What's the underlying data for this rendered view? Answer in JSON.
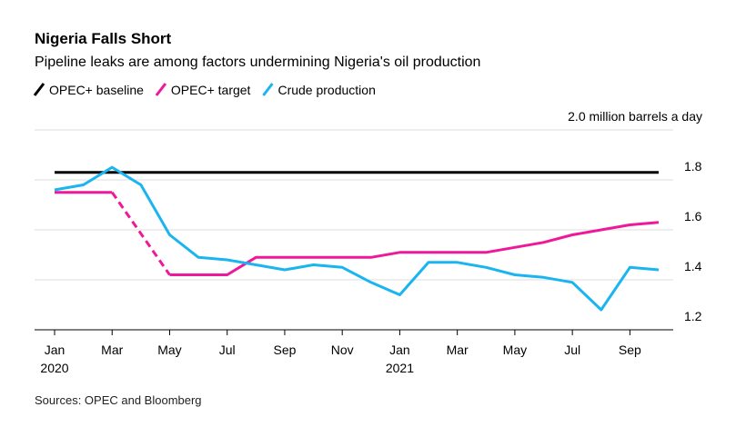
{
  "chart_data": {
    "type": "line",
    "title": "Nigeria Falls Short",
    "subtitle": "Pipeline leaks are among factors undermining Nigeria's oil production",
    "source": "Sources: OPEC and Bloomberg",
    "categories": [
      "Jan",
      null,
      "Mar",
      null,
      "May",
      null,
      "Jul",
      null,
      "Sep",
      null,
      "Nov",
      null,
      "Jan",
      null,
      "Mar",
      null,
      "May",
      null,
      "Jul",
      null,
      "Sep",
      null
    ],
    "years": [
      "2020",
      "2021"
    ],
    "series": [
      {
        "name": "OPEC+ baseline",
        "color": "#000000",
        "values": [
          1.83,
          1.83,
          1.83,
          1.83,
          1.83,
          1.83,
          1.83,
          1.83,
          1.83,
          1.83,
          1.83,
          1.83,
          1.83,
          1.83,
          1.83,
          1.83,
          1.83,
          1.83,
          1.83,
          1.83,
          1.83,
          1.83
        ]
      },
      {
        "name": "OPEC+ target",
        "color": "#f0189a",
        "values": [
          1.75,
          1.75,
          1.75,
          null,
          1.42,
          1.42,
          1.42,
          1.49,
          1.49,
          1.49,
          1.49,
          1.49,
          1.51,
          1.51,
          1.51,
          1.51,
          1.53,
          1.55,
          1.58,
          1.6,
          1.62,
          1.63
        ]
      },
      {
        "name": "Crude production",
        "color": "#1ab5f0",
        "values": [
          1.76,
          1.78,
          1.85,
          1.78,
          1.58,
          1.49,
          1.48,
          1.46,
          1.44,
          1.46,
          1.45,
          1.39,
          1.34,
          1.47,
          1.47,
          1.45,
          1.42,
          1.41,
          1.39,
          1.28,
          1.45,
          1.44
        ]
      }
    ],
    "ylim": [
      1.2,
      2.0
    ],
    "yticks": [
      1.2,
      1.4,
      1.6,
      1.8,
      {
        "value": 2.0,
        "label": "2.0 million barrels a day"
      }
    ],
    "grid": true
  }
}
